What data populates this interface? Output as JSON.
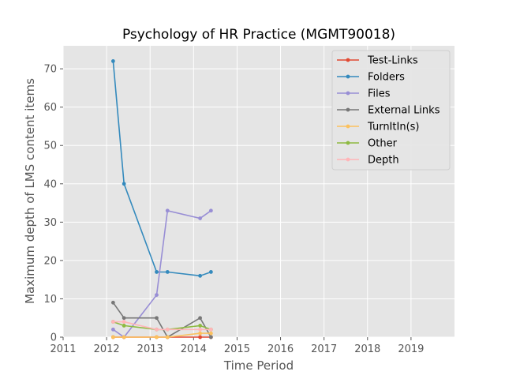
{
  "chart_data": {
    "type": "line",
    "title": "Psychology of HR Practice (MGMT90018)",
    "xlabel": "Time Period",
    "ylabel": "Maximum depth of LMS content items",
    "xlim": [
      2011.0,
      2020.0
    ],
    "ylim": [
      0,
      76
    ],
    "xticks": [
      2011,
      2012,
      2013,
      2014,
      2015,
      2016,
      2017,
      2018,
      2019
    ],
    "yticks": [
      0,
      10,
      20,
      30,
      40,
      50,
      60,
      70
    ],
    "grid": true,
    "legend_position": "top-right",
    "x": [
      2012.15,
      2012.4,
      2013.15,
      2013.4,
      2014.15,
      2014.4
    ],
    "series": [
      {
        "name": "Test-Links",
        "color": "#e24a33",
        "values": [
          0,
          0,
          0,
          0,
          0,
          0
        ]
      },
      {
        "name": "Folders",
        "color": "#348abd",
        "values": [
          72,
          40,
          17,
          17,
          16,
          17
        ]
      },
      {
        "name": "Files",
        "color": "#988ed5",
        "values": [
          2,
          0,
          11,
          33,
          31,
          33
        ]
      },
      {
        "name": "External Links",
        "color": "#777777",
        "values": [
          9,
          5,
          5,
          0,
          5,
          0
        ]
      },
      {
        "name": "TurnItIn(s)",
        "color": "#fbc15e",
        "values": [
          0,
          0,
          0,
          0,
          1,
          1
        ]
      },
      {
        "name": "Other",
        "color": "#8eba42",
        "values": [
          4,
          3,
          2,
          2,
          3,
          2
        ]
      },
      {
        "name": "Depth",
        "color": "#ffb5b8",
        "values": [
          4,
          4,
          2,
          2,
          2,
          2
        ]
      }
    ]
  }
}
